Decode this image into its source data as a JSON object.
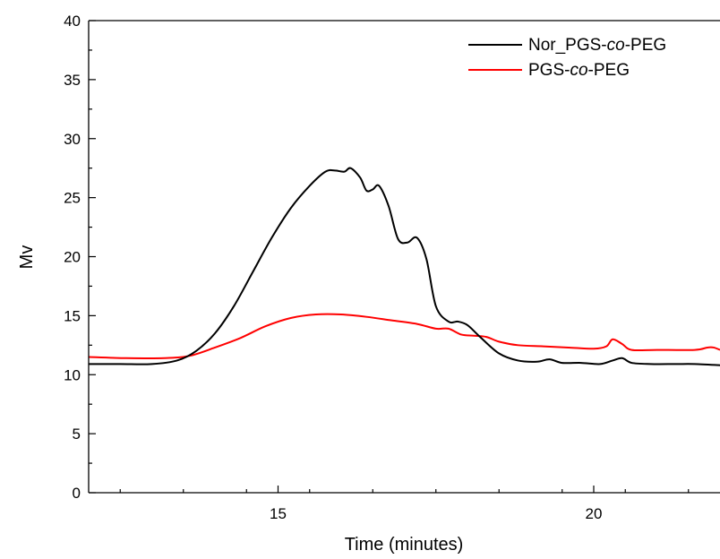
{
  "chart_data": {
    "type": "line",
    "title": "",
    "xlabel": "Time (minutes)",
    "ylabel": "Mv",
    "xlim": [
      12.0,
      22.0
    ],
    "ylim": [
      0,
      40
    ],
    "x_ticks": [
      15,
      20
    ],
    "x_tick_labels": [
      "15",
      "20"
    ],
    "x_minor_ticks": [
      12.5,
      13.5,
      14.5,
      15.5,
      16.5,
      17.5,
      18.5,
      19.5,
      20.5,
      21.5
    ],
    "y_ticks": [
      0,
      5,
      10,
      15,
      20,
      25,
      30,
      35,
      40
    ],
    "y_tick_labels": [
      "0",
      "5",
      "10",
      "15",
      "20",
      "25",
      "30",
      "35",
      "40"
    ],
    "grid": false,
    "legend_position": "top-right",
    "series": [
      {
        "name": "Nor_PGS-co-PEG",
        "color": "#000000",
        "x": [
          12.0,
          12.5,
          13.0,
          13.4,
          13.7,
          14.0,
          14.3,
          14.6,
          14.9,
          15.2,
          15.5,
          15.75,
          15.9,
          16.05,
          16.15,
          16.3,
          16.4,
          16.5,
          16.6,
          16.75,
          16.9,
          17.05,
          17.2,
          17.35,
          17.5,
          17.7,
          17.85,
          18.0,
          18.2,
          18.5,
          18.8,
          19.1,
          19.3,
          19.5,
          19.8,
          20.1,
          20.3,
          20.45,
          20.6,
          20.9,
          21.3,
          21.6,
          22.0
        ],
        "y": [
          10.9,
          10.9,
          10.9,
          11.2,
          12.0,
          13.5,
          15.8,
          18.7,
          21.6,
          24.1,
          26.0,
          27.2,
          27.3,
          27.2,
          27.5,
          26.7,
          25.6,
          25.7,
          26.0,
          24.3,
          21.5,
          21.2,
          21.6,
          19.8,
          15.8,
          14.5,
          14.5,
          14.2,
          13.2,
          11.8,
          11.2,
          11.1,
          11.3,
          11.0,
          11.0,
          10.9,
          11.2,
          11.4,
          11.0,
          10.9,
          10.9,
          10.9,
          10.8
        ]
      },
      {
        "name": "PGS-co-PEG",
        "color": "#ff0000",
        "x": [
          12.0,
          12.6,
          13.2,
          13.6,
          14.0,
          14.4,
          14.8,
          15.2,
          15.6,
          16.0,
          16.4,
          16.8,
          17.2,
          17.5,
          17.7,
          17.9,
          18.1,
          18.3,
          18.5,
          18.8,
          19.2,
          19.6,
          20.0,
          20.2,
          20.3,
          20.45,
          20.6,
          21.0,
          21.6,
          21.8,
          21.9,
          22.0
        ],
        "y": [
          11.5,
          11.4,
          11.4,
          11.6,
          12.3,
          13.1,
          14.1,
          14.8,
          15.1,
          15.1,
          14.9,
          14.6,
          14.3,
          13.9,
          13.9,
          13.4,
          13.3,
          13.2,
          12.8,
          12.5,
          12.4,
          12.3,
          12.2,
          12.4,
          13.0,
          12.6,
          12.1,
          12.1,
          12.1,
          12.3,
          12.3,
          12.1
        ]
      }
    ]
  }
}
